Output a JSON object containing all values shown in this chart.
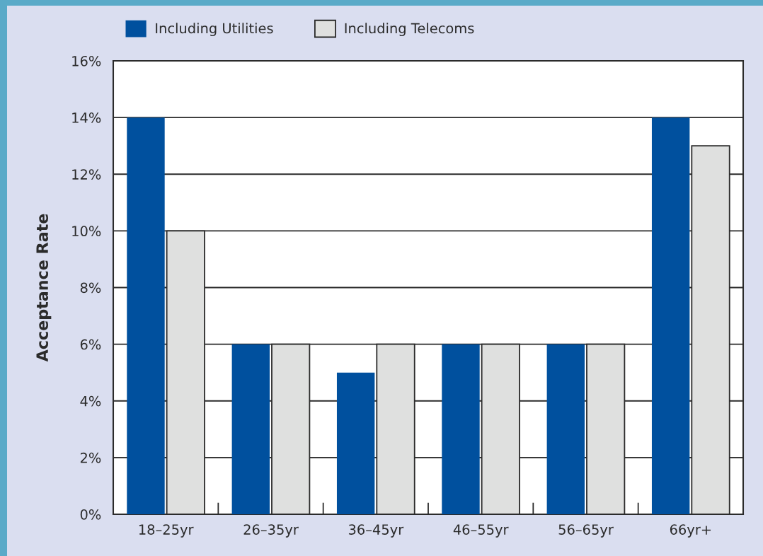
{
  "chart_data": {
    "type": "bar",
    "ylabel": "Acceptance Rate",
    "categories": [
      "18–25yr",
      "26–35yr",
      "36–45yr",
      "46–55yr",
      "56–65yr",
      "66yr+"
    ],
    "series": [
      {
        "name": "Including Utilities",
        "color": "#00509e",
        "values": [
          14,
          6,
          5,
          6,
          6,
          14
        ]
      },
      {
        "name": "Including Telecoms",
        "color": "#dfe0df",
        "values": [
          10,
          6,
          6,
          6,
          6,
          13
        ]
      }
    ],
    "ylim": [
      0,
      16
    ],
    "yticks": [
      {
        "value": 0,
        "label": "0%"
      },
      {
        "value": 2,
        "label": "2%"
      },
      {
        "value": 4,
        "label": "4%"
      },
      {
        "value": 6,
        "label": "6%"
      },
      {
        "value": 8,
        "label": "8%"
      },
      {
        "value": 10,
        "label": "10%"
      },
      {
        "value": 12,
        "label": "12%"
      },
      {
        "value": 14,
        "label": "14%"
      },
      {
        "value": 16,
        "label": "16%"
      }
    ],
    "grid": "y",
    "legend": "top"
  }
}
